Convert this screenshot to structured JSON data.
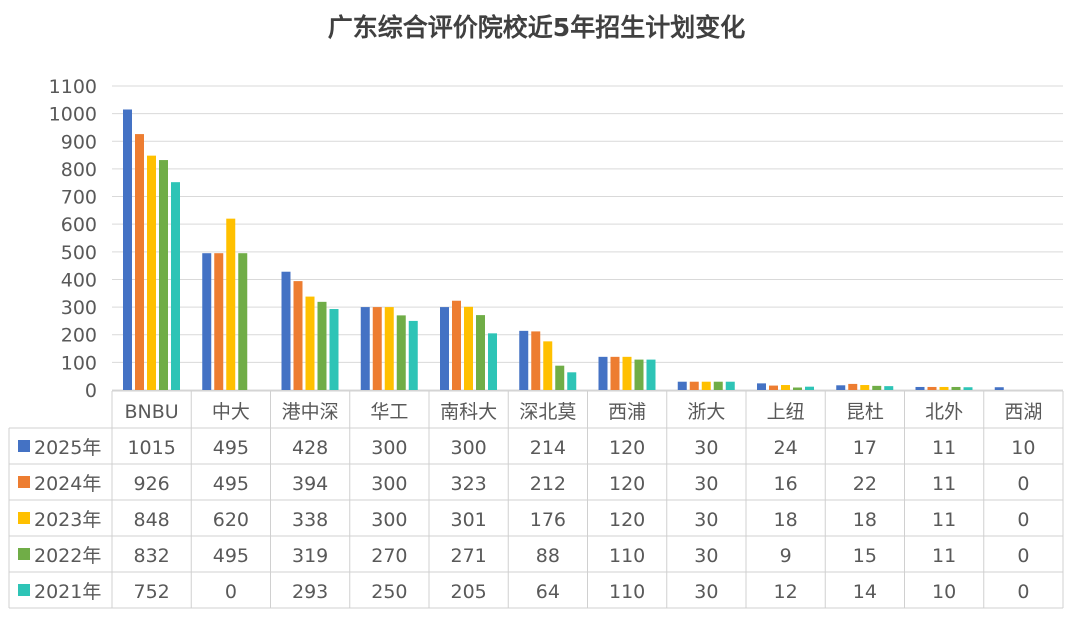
{
  "chart_data": {
    "type": "bar",
    "title": "广东综合评价院校近5年招生计划变化",
    "categories": [
      "BNBU",
      "中大",
      "港中深",
      "华工",
      "南科大",
      "深北莫",
      "西浦",
      "浙大",
      "上纽",
      "昆杜",
      "北外",
      "西湖"
    ],
    "series": [
      {
        "name": "2025年",
        "color": "#4472C4",
        "values": [
          1015,
          495,
          428,
          300,
          300,
          214,
          120,
          30,
          24,
          17,
          11,
          10
        ]
      },
      {
        "name": "2024年",
        "color": "#ED7D31",
        "values": [
          926,
          495,
          394,
          300,
          323,
          212,
          120,
          30,
          16,
          22,
          11,
          0
        ]
      },
      {
        "name": "2023年",
        "color": "#FFC000",
        "values": [
          848,
          620,
          338,
          300,
          301,
          176,
          120,
          30,
          18,
          18,
          11,
          0
        ]
      },
      {
        "name": "2022年",
        "color": "#70AD47",
        "values": [
          832,
          495,
          319,
          270,
          271,
          88,
          110,
          30,
          9,
          15,
          11,
          0
        ]
      },
      {
        "name": "2021年",
        "color": "#2EC4B6",
        "values": [
          752,
          0,
          293,
          250,
          205,
          64,
          110,
          30,
          12,
          14,
          10,
          0
        ]
      }
    ],
    "ylim": [
      0,
      1100
    ],
    "yticks": [
      0,
      100,
      200,
      300,
      400,
      500,
      600,
      700,
      800,
      900,
      1000,
      1100
    ],
    "grid": true,
    "legend": "data-table"
  }
}
